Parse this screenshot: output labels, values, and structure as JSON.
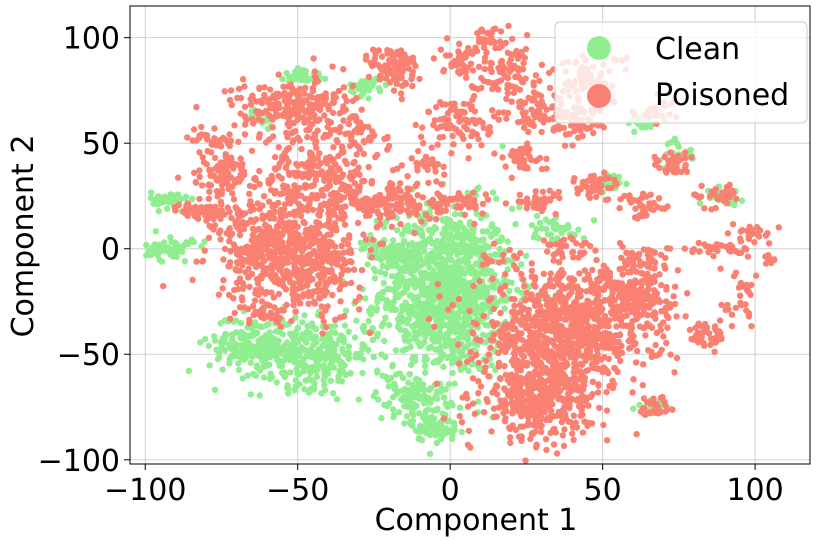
{
  "chart_data": {
    "type": "scatter",
    "title": "",
    "xlabel": "Component 1",
    "ylabel": "Component 2",
    "xlim": [
      -105,
      118
    ],
    "ylim": [
      -102,
      115
    ],
    "xticks": [
      -100,
      -50,
      0,
      50,
      100
    ],
    "xtick_labels": [
      "−100",
      "−50",
      "0",
      "50",
      "100"
    ],
    "yticks": [
      -100,
      -50,
      0,
      50,
      100
    ],
    "ytick_labels": [
      "−100",
      "−50",
      "0",
      "50",
      "100"
    ],
    "grid": true,
    "legend_position": "top-right",
    "series": [
      {
        "name": "Clean",
        "color": "#90ee90",
        "clusters": [
          {
            "cx": -1,
            "cy": -20,
            "sx": 11,
            "sy": 20,
            "n": 1100
          },
          {
            "cx": -45,
            "cy": -50,
            "sx": 10,
            "sy": 8,
            "n": 300
          },
          {
            "cx": -65,
            "cy": -45,
            "sx": 7,
            "sy": 7,
            "n": 180
          },
          {
            "cx": -17,
            "cy": -3,
            "sx": 5,
            "sy": 3,
            "n": 90
          },
          {
            "cx": -12,
            "cy": -70,
            "sx": 6,
            "sy": 6,
            "n": 110
          },
          {
            "cx": -5,
            "cy": -85,
            "sx": 4,
            "sy": 3,
            "n": 70
          },
          {
            "cx": -92,
            "cy": 23,
            "sx": 3,
            "sy": 2,
            "n": 50
          },
          {
            "cx": -92,
            "cy": 0,
            "sx": 4,
            "sy": 3,
            "n": 50
          },
          {
            "cx": -48,
            "cy": 82,
            "sx": 3,
            "sy": 2,
            "n": 35
          },
          {
            "cx": -27,
            "cy": 77,
            "sx": 3,
            "sy": 2,
            "n": 35
          },
          {
            "cx": 35,
            "cy": 10,
            "sx": 5,
            "sy": 3,
            "n": 35
          },
          {
            "cx": 52,
            "cy": 32,
            "sx": 3,
            "sy": 2,
            "n": 30
          },
          {
            "cx": 62,
            "cy": 60,
            "sx": 3,
            "sy": 2,
            "n": 30
          },
          {
            "cx": 75,
            "cy": 45,
            "sx": 3,
            "sy": 3,
            "n": 25
          },
          {
            "cx": 90,
            "cy": 25,
            "sx": 3,
            "sy": 2,
            "n": 25
          },
          {
            "cx": -62,
            "cy": 62,
            "sx": 2,
            "sy": 2,
            "n": 20
          },
          {
            "cx": 67,
            "cy": -75,
            "sx": 3,
            "sy": 2,
            "n": 20
          }
        ]
      },
      {
        "name": "Poisoned",
        "color": "#fa8072",
        "clusters": [
          {
            "cx": 38,
            "cy": -40,
            "sx": 14,
            "sy": 14,
            "n": 900
          },
          {
            "cx": 28,
            "cy": -72,
            "sx": 9,
            "sy": 9,
            "n": 350
          },
          {
            "cx": 62,
            "cy": -23,
            "sx": 6,
            "sy": 8,
            "n": 160
          },
          {
            "cx": -58,
            "cy": 0,
            "sx": 10,
            "sy": 12,
            "n": 400
          },
          {
            "cx": -45,
            "cy": -10,
            "sx": 8,
            "sy": 12,
            "n": 230
          },
          {
            "cx": -42,
            "cy": 35,
            "sx": 10,
            "sy": 12,
            "n": 300
          },
          {
            "cx": -52,
            "cy": 67,
            "sx": 10,
            "sy": 7,
            "n": 220
          },
          {
            "cx": -18,
            "cy": 22,
            "sx": 8,
            "sy": 6,
            "n": 150
          },
          {
            "cx": -18,
            "cy": 85,
            "sx": 4,
            "sy": 6,
            "n": 90
          },
          {
            "cx": -75,
            "cy": 35,
            "sx": 5,
            "sy": 6,
            "n": 70
          },
          {
            "cx": -78,
            "cy": 18,
            "sx": 5,
            "sy": 2,
            "n": 50
          },
          {
            "cx": 2,
            "cy": 60,
            "sx": 6,
            "sy": 6,
            "n": 90
          },
          {
            "cx": 3,
            "cy": 90,
            "sx": 3,
            "sy": 4,
            "n": 45
          },
          {
            "cx": 18,
            "cy": 85,
            "sx": 6,
            "sy": 7,
            "n": 90
          },
          {
            "cx": 29,
            "cy": 65,
            "sx": 5,
            "sy": 5,
            "n": 70
          },
          {
            "cx": 23,
            "cy": 43,
            "sx": 4,
            "sy": 3,
            "n": 45
          },
          {
            "cx": 3,
            "cy": 22,
            "sx": 5,
            "sy": 3,
            "n": 50
          },
          {
            "cx": 42,
            "cy": 60,
            "sx": 4,
            "sy": 4,
            "n": 50
          },
          {
            "cx": 45,
            "cy": 80,
            "sx": 6,
            "sy": 6,
            "n": 70
          },
          {
            "cx": 47,
            "cy": 30,
            "sx": 4,
            "sy": 3,
            "n": 45
          },
          {
            "cx": 30,
            "cy": 22,
            "sx": 4,
            "sy": 3,
            "n": 40
          },
          {
            "cx": 64,
            "cy": 20,
            "sx": 4,
            "sy": 3,
            "n": 40
          },
          {
            "cx": 73,
            "cy": 40,
            "sx": 3,
            "sy": 3,
            "n": 35
          },
          {
            "cx": 87,
            "cy": 25,
            "sx": 4,
            "sy": 3,
            "n": 35
          },
          {
            "cx": 88,
            "cy": 0,
            "sx": 5,
            "sy": 2,
            "n": 35
          },
          {
            "cx": 63,
            "cy": -5,
            "sx": 5,
            "sy": 3,
            "n": 35
          },
          {
            "cx": 85,
            "cy": -40,
            "sx": 3,
            "sy": 4,
            "n": 35
          },
          {
            "cx": 68,
            "cy": -75,
            "sx": 3,
            "sy": 3,
            "n": 30
          },
          {
            "cx": -78,
            "cy": 52,
            "sx": 4,
            "sy": 3,
            "n": 25
          },
          {
            "cx": -72,
            "cy": 40,
            "sx": 3,
            "sy": 3,
            "n": 25
          },
          {
            "cx": -83,
            "cy": 18,
            "sx": 3,
            "sy": 2,
            "n": 25
          },
          {
            "cx": 12,
            "cy": 100,
            "sx": 3,
            "sy": 3,
            "n": 25
          },
          {
            "cx": 68,
            "cy": 65,
            "sx": 4,
            "sy": 3,
            "n": 25
          },
          {
            "cx": -62,
            "cy": -30,
            "sx": 4,
            "sy": 3,
            "n": 25
          },
          {
            "cx": 100,
            "cy": 8,
            "sx": 3,
            "sy": 2,
            "n": 20
          },
          {
            "cx": 97,
            "cy": -18,
            "sx": 2,
            "sy": 3,
            "n": 15
          },
          {
            "cx": 105,
            "cy": -5,
            "sx": 1,
            "sy": 2,
            "n": 10
          },
          {
            "cx": 95,
            "cy": -30,
            "sx": 3,
            "sy": 3,
            "n": 15
          },
          {
            "cx": 38,
            "cy": 0,
            "sx": 5,
            "sy": 3,
            "n": 25
          },
          {
            "cx": 18,
            "cy": -5,
            "sx": 5,
            "sy": 4,
            "n": 20
          },
          {
            "cx": -8,
            "cy": 40,
            "sx": 3,
            "sy": 3,
            "n": 20
          },
          {
            "cx": -28,
            "cy": 55,
            "sx": 3,
            "sy": 3,
            "n": 20
          }
        ]
      }
    ]
  }
}
